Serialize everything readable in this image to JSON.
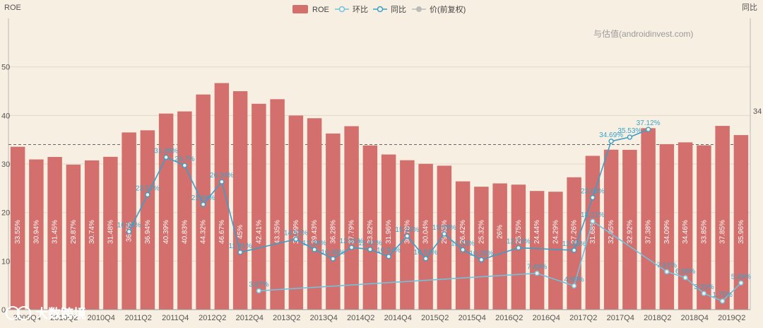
{
  "chart_data": {
    "type": "bar",
    "left_axis_label": "ROE",
    "right_axis_label": "同比",
    "watermark": "与估值(androidinvest.com)",
    "logo_text": "大数跨境",
    "ylim": [
      0,
      60
    ],
    "y_ticks": [
      "0",
      "10",
      "20",
      "30",
      "40",
      "50"
    ],
    "reference_line": 34,
    "reference_label": "34",
    "legend": [
      {
        "name": "ROE",
        "kind": "bar",
        "color": "#d36f6c"
      },
      {
        "name": "环比",
        "kind": "line",
        "color": "#6ec3df"
      },
      {
        "name": "同比",
        "kind": "line",
        "color": "#3a9fc9"
      },
      {
        "name": "价(前复权)",
        "kind": "dot",
        "color": "#bbbbbb"
      }
    ],
    "x_tick_labels": [
      "2009Q4",
      "2010Q2",
      "2010Q4",
      "2011Q2",
      "2011Q4",
      "2012Q2",
      "2012Q4",
      "2013Q2",
      "2013Q4",
      "2014Q2",
      "2014Q4",
      "2015Q2",
      "2015Q4",
      "2016Q2",
      "2016Q4",
      "2017Q2",
      "2017Q4",
      "2018Q2",
      "2018Q4",
      "2019Q2"
    ],
    "series": [
      {
        "name": "ROE",
        "values": [
          33.55,
          30.94,
          31.45,
          29.87,
          30.74,
          31.48,
          36.5,
          36.94,
          40.39,
          40.83,
          44.32,
          46.67,
          45,
          42.41,
          43.35,
          39.99,
          39.43,
          36.28,
          37.79,
          33.82,
          31.96,
          30.78,
          30.04,
          29.65,
          26.42,
          25.32,
          26,
          25.75,
          24.44,
          24.29,
          27.26,
          31.68,
          32.95,
          32.92,
          37.38,
          34.09,
          34.46,
          33.85,
          37.85,
          35.96
        ],
        "labels": [
          "33.55%",
          "30.94%",
          "31.45%",
          "29.87%",
          "30.74%",
          "31.48%",
          "36.5%",
          "36.94%",
          "40.39%",
          "40.83%",
          "44.32%",
          "46.67%",
          "45%",
          "42.41%",
          "43.35%",
          "39.99%",
          "39.43%",
          "36.28%",
          "37.79%",
          "33.82%",
          "31.96%",
          "30.78%",
          "30.04%",
          "29.65%",
          "26.42%",
          "25.32%",
          "26%",
          "25.75%",
          "24.44%",
          "24.29%",
          "27.26%",
          "31.68%",
          "32.95%",
          "32.92%",
          "37.38%",
          "34.09%",
          "34.46%",
          "33.85%",
          "37.85%",
          "35.96%"
        ]
      },
      {
        "name": "同比",
        "values": [
          null,
          null,
          null,
          null,
          null,
          null,
          16.08,
          23.67,
          31.39,
          29.7,
          21.68,
          26.34,
          11.81,
          null,
          null,
          14.51,
          12.38,
          10.48,
          12.81,
          12.41,
          10.94,
          15.16,
          10.51,
          15.59,
          12.33,
          10.28,
          null,
          12.73,
          null,
          null,
          12.23,
          23.08,
          34.69,
          35.53,
          37.12,
          null,
          null,
          null,
          null,
          null
        ],
        "labels": [
          "",
          "",
          "",
          "",
          "",
          "",
          "16.08%",
          "23.67%",
          "31.39%",
          "29.7%",
          "21.68%",
          "26.34%",
          "11.81%",
          "",
          "",
          "14.51%",
          "12.38%",
          "10.48%",
          "12.81%",
          "12.41%",
          "10.94%",
          "15.16%",
          "10.51%",
          "15.59%",
          "12.33%",
          "10.28%",
          "",
          "12.73%",
          "",
          "",
          "12.23%",
          "23.08%",
          "34.69%",
          "35.53%",
          "37.12%",
          "",
          "",
          "",
          "",
          ""
        ]
      },
      {
        "name": "环比",
        "values": [
          null,
          null,
          null,
          null,
          null,
          null,
          null,
          null,
          null,
          null,
          null,
          null,
          null,
          3.87,
          null,
          null,
          null,
          null,
          null,
          null,
          null,
          null,
          null,
          null,
          null,
          null,
          null,
          null,
          7.49,
          null,
          4.89,
          18.21,
          null,
          null,
          null,
          7.81,
          6.58,
          3.33,
          1.75,
          5.49
        ],
        "labels": [
          "",
          "",
          "",
          "",
          "",
          "",
          "",
          "",
          "",
          "",
          "",
          "",
          "",
          "3.87%",
          "",
          "",
          "",
          "",
          "",
          "",
          "",
          "",
          "",
          "",
          "",
          "",
          "",
          "",
          "7.49%",
          "",
          "4.89%",
          "18.21%",
          "",
          "",
          "",
          "7.81%",
          "6.58%",
          "3.33%",
          "1.75%",
          "5.49%"
        ]
      }
    ]
  }
}
